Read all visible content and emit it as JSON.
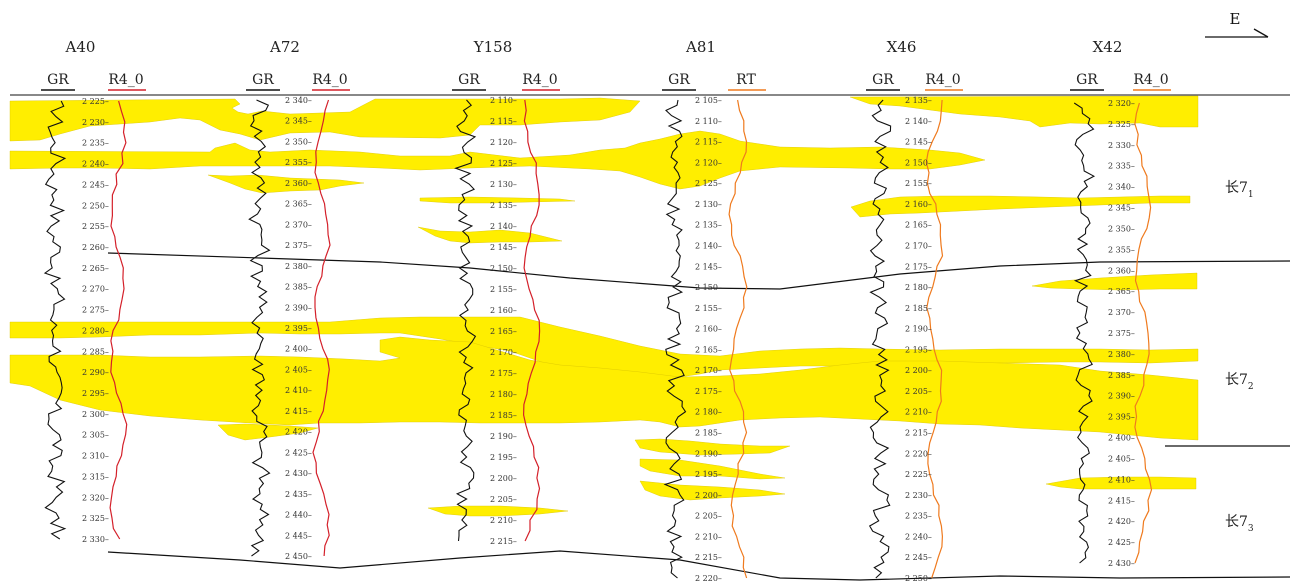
{
  "direction_label": "E",
  "colors": {
    "sand": "#ffee00",
    "sand_edge": "#d9c400",
    "gr_curve": "#111111",
    "r4_curve": "#d4202a",
    "rt_curve": "#ef7a1e",
    "line": "#111111"
  },
  "wells": [
    {
      "name": "A40",
      "curve1": "GR",
      "curve2": "R4_0",
      "depth_start": 2225,
      "depth_end": 2330,
      "curve2_color": "#d4202a"
    },
    {
      "name": "A72",
      "curve1": "GR",
      "curve2": "R4_0",
      "depth_start": 2340,
      "depth_end": 2450,
      "curve2_color": "#d4202a"
    },
    {
      "name": "Y158",
      "curve1": "GR",
      "curve2": "R4_0",
      "depth_start": 2110,
      "depth_end": 2215,
      "curve2_color": "#d4202a"
    },
    {
      "name": "A81",
      "curve1": "GR",
      "curve2": "RT",
      "depth_start": 2105,
      "depth_end": 2220,
      "curve2_color": "#ef7a1e"
    },
    {
      "name": "X46",
      "curve1": "GR",
      "curve2": "R4_0",
      "depth_start": 2135,
      "depth_end": 2250,
      "curve2_color": "#ef7a1e"
    },
    {
      "name": "X42",
      "curve1": "GR",
      "curve2": "R4_0",
      "depth_start": 2320,
      "depth_end": 2430,
      "curve2_color": "#ef7a1e"
    }
  ],
  "zones": [
    {
      "main": "长7",
      "sub": "1"
    },
    {
      "main": "长7",
      "sub": "2"
    },
    {
      "main": "长7",
      "sub": "3"
    }
  ]
}
